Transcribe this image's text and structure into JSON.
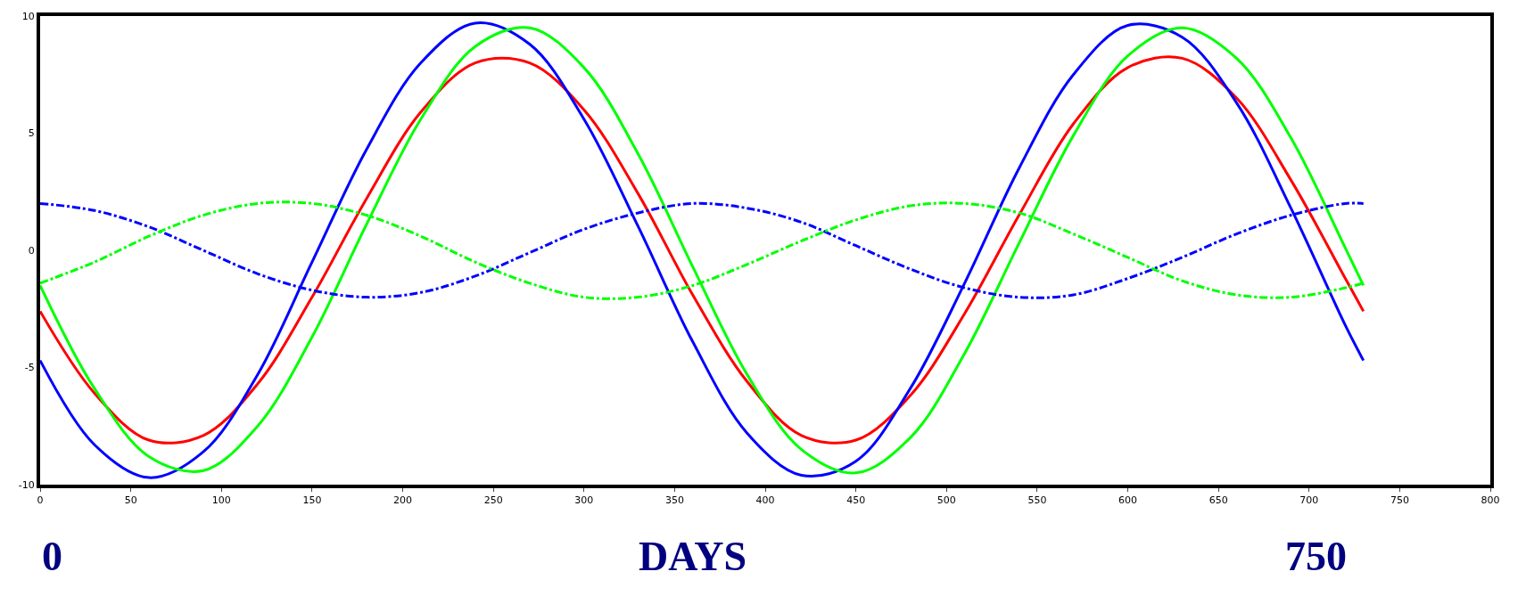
{
  "chart_data": {
    "type": "line",
    "x": [
      0,
      30,
      60,
      90,
      120,
      150,
      180,
      210,
      240,
      270,
      300,
      330,
      360,
      390,
      420,
      450,
      480,
      510,
      540,
      570,
      600,
      630,
      660,
      690,
      720,
      730
    ],
    "series": [
      {
        "color": "#ff0000",
        "line_style": "solid",
        "values": [
          -2.6,
          -6.1,
          -8.1,
          -7.9,
          -5.7,
          -2.0,
          2.2,
          5.9,
          8.0,
          8.0,
          6.0,
          2.4,
          -1.9,
          -5.6,
          -7.9,
          -8.1,
          -6.2,
          -2.7,
          1.5,
          5.4,
          7.8,
          8.2,
          6.5,
          3.0,
          -1.2,
          -2.6
        ]
      },
      {
        "color": "#0000ff",
        "line_style": "solid",
        "values": [
          -4.7,
          -8.3,
          -9.7,
          -8.6,
          -5.3,
          -0.5,
          4.3,
          8.0,
          9.7,
          8.8,
          5.6,
          1.0,
          -3.9,
          -7.8,
          -9.6,
          -9.0,
          -5.9,
          -1.4,
          3.5,
          7.5,
          9.6,
          9.1,
          6.3,
          1.8,
          -3.2,
          -4.7
        ]
      },
      {
        "color": "#00ff00",
        "line_style": "solid",
        "values": [
          -1.5,
          -5.9,
          -8.8,
          -9.4,
          -7.5,
          -3.7,
          1.1,
          5.6,
          8.7,
          9.5,
          7.8,
          4.1,
          -0.7,
          -5.3,
          -8.5,
          -9.5,
          -8.0,
          -4.4,
          0.3,
          4.9,
          8.3,
          9.5,
          8.2,
          4.8,
          0.1,
          -1.5
        ]
      },
      {
        "color": "#0000ff",
        "line_style": "dashed",
        "values": [
          2.0,
          1.7,
          1.0,
          0.0,
          -1.0,
          -1.7,
          -2.0,
          -1.8,
          -1.1,
          -0.1,
          0.9,
          1.6,
          2.0,
          1.8,
          1.2,
          0.2,
          -0.8,
          -1.6,
          -2.0,
          -1.9,
          -1.2,
          -0.3,
          0.7,
          1.5,
          2.0,
          2.0
        ]
      },
      {
        "color": "#00ff00",
        "line_style": "dashed",
        "values": [
          -1.4,
          -0.5,
          0.6,
          1.5,
          2.0,
          2.0,
          1.5,
          0.6,
          -0.5,
          -1.4,
          -2.0,
          -2.0,
          -1.5,
          -0.6,
          0.4,
          1.3,
          1.9,
          2.0,
          1.6,
          0.7,
          -0.3,
          -1.3,
          -1.9,
          -2.0,
          -1.6,
          -1.4
        ]
      }
    ],
    "xlim": [
      0,
      800
    ],
    "xticks": [
      0,
      50,
      100,
      150,
      200,
      250,
      300,
      350,
      400,
      450,
      500,
      550,
      600,
      650,
      700,
      750,
      800
    ],
    "ylim": [
      -10,
      10
    ],
    "yticks": [
      -10,
      -5,
      0,
      5,
      10
    ],
    "marker": "none",
    "annotations": [
      "0",
      "DAYS",
      "750"
    ]
  }
}
